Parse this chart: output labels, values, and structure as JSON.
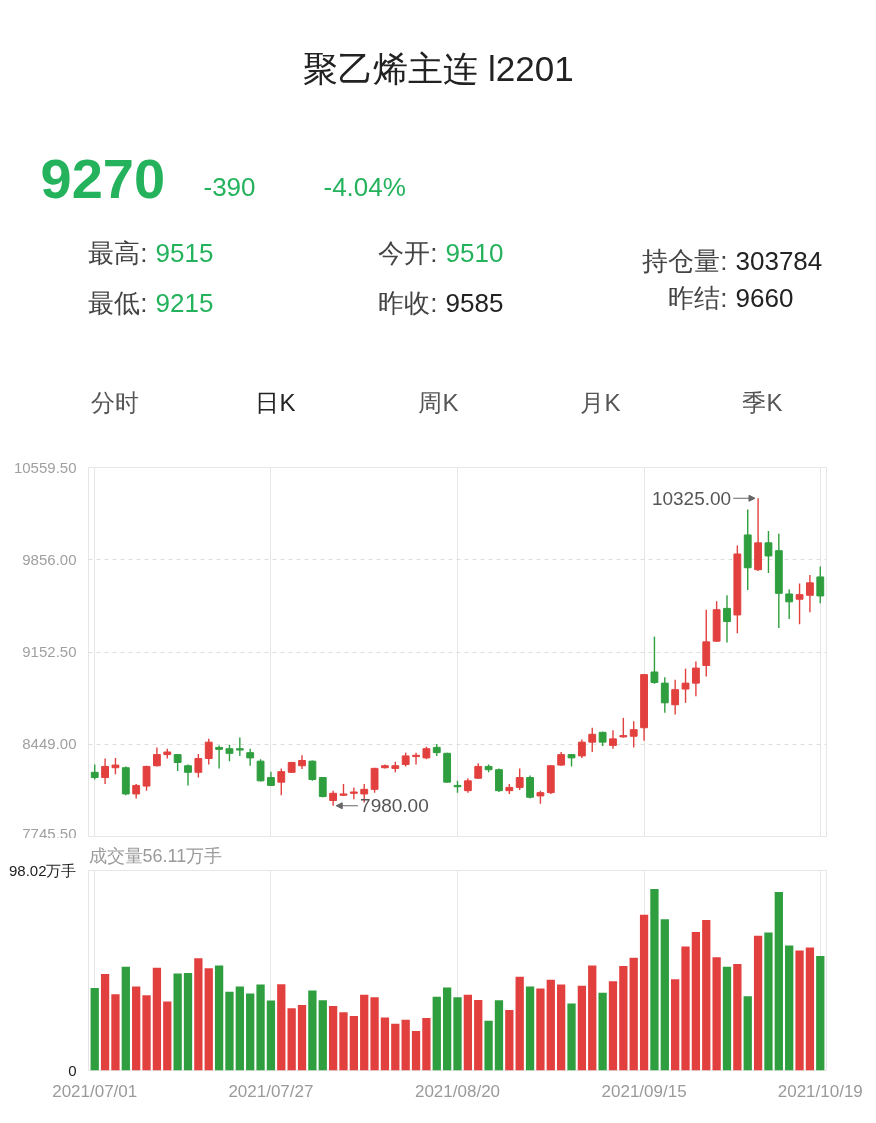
{
  "chart_data": [
    {
      "type": "other",
      "title": "聚乙烯主连 l2201",
      "annotations": [
        "9270",
        "-390",
        "-4.04%",
        "最高: 9515",
        "今开: 9510",
        "持仓量: 303784",
        "最低: 9215",
        "昨收: 9585",
        "昨结: 9660",
        "分时",
        "日K",
        "周K",
        "月K",
        "季K"
      ]
    },
    {
      "type": "candlestick",
      "categories": [
        "2021/07/01",
        null,
        null,
        null,
        null,
        null,
        null,
        null,
        null,
        null,
        null,
        null,
        null,
        null,
        null,
        null,
        null,
        "2021/07/27",
        null,
        null,
        null,
        null,
        null,
        null,
        null,
        null,
        null,
        null,
        null,
        null,
        null,
        null,
        null,
        null,
        null,
        "2021/08/20",
        null,
        null,
        null,
        null,
        null,
        null,
        null,
        null,
        null,
        null,
        null,
        null,
        null,
        null,
        null,
        null,
        null,
        "2021/09/15",
        null,
        null,
        null,
        null,
        null,
        null,
        null,
        null,
        null,
        null,
        null,
        null,
        null,
        null,
        null,
        null,
        "2021/10/19"
      ],
      "ohlc": [
        [
          8235,
          8295,
          8180,
          8195
        ],
        [
          8195,
          8340,
          8145,
          8280
        ],
        [
          8270,
          8345,
          8220,
          8290
        ],
        [
          8270,
          8280,
          8060,
          8070
        ],
        [
          8070,
          8145,
          8035,
          8135
        ],
        [
          8130,
          8285,
          8095,
          8280
        ],
        [
          8285,
          8425,
          8280,
          8370
        ],
        [
          8370,
          8415,
          8340,
          8390
        ],
        [
          8370,
          8375,
          8245,
          8310
        ],
        [
          8285,
          8295,
          8135,
          8235
        ],
        [
          8235,
          8375,
          8195,
          8340
        ],
        [
          8340,
          8490,
          8295,
          8465
        ],
        [
          8425,
          8440,
          8265,
          8410
        ],
        [
          8415,
          8445,
          8320,
          8380
        ],
        [
          8415,
          8500,
          8360,
          8405
        ],
        [
          8385,
          8415,
          8285,
          8345
        ],
        [
          8320,
          8335,
          8165,
          8170
        ],
        [
          8195,
          8240,
          8130,
          8135
        ],
        [
          8160,
          8265,
          8060,
          8240
        ],
        [
          8235,
          8315,
          8230,
          8310
        ],
        [
          8285,
          8365,
          8260,
          8325
        ],
        [
          8320,
          8325,
          8170,
          8180
        ],
        [
          8195,
          8200,
          8045,
          8050
        ],
        [
          8020,
          8095,
          7980,
          8075
        ],
        [
          8060,
          8145,
          8055,
          8070
        ],
        [
          8075,
          8120,
          8030,
          8085
        ],
        [
          8070,
          8145,
          8005,
          8105
        ],
        [
          8105,
          8270,
          8080,
          8265
        ],
        [
          8270,
          8295,
          8265,
          8285
        ],
        [
          8265,
          8315,
          8235,
          8285
        ],
        [
          8295,
          8385,
          8280,
          8360
        ],
        [
          8355,
          8385,
          8295,
          8365
        ],
        [
          8345,
          8430,
          8335,
          8415
        ],
        [
          8425,
          8450,
          8360,
          8385
        ],
        [
          8380,
          8385,
          8155,
          8160
        ],
        [
          8135,
          8170,
          8080,
          8125
        ],
        [
          8095,
          8190,
          8080,
          8170
        ],
        [
          8190,
          8305,
          8185,
          8280
        ],
        [
          8280,
          8295,
          8235,
          8255
        ],
        [
          8255,
          8265,
          8085,
          8095
        ],
        [
          8095,
          8145,
          8070,
          8120
        ],
        [
          8120,
          8265,
          8100,
          8195
        ],
        [
          8195,
          8210,
          8035,
          8045
        ],
        [
          8055,
          8095,
          7995,
          8080
        ],
        [
          8080,
          8290,
          8070,
          8285
        ],
        [
          8290,
          8390,
          8285,
          8370
        ],
        [
          8370,
          8375,
          8280,
          8345
        ],
        [
          8360,
          8485,
          8345,
          8465
        ],
        [
          8465,
          8575,
          8390,
          8525
        ],
        [
          8540,
          8545,
          8435,
          8465
        ],
        [
          8440,
          8555,
          8415,
          8490
        ],
        [
          8505,
          8650,
          8500,
          8515
        ],
        [
          8510,
          8625,
          8425,
          8560
        ],
        [
          8575,
          8985,
          8475,
          8980
        ],
        [
          9000,
          9270,
          8910,
          8920
        ],
        [
          8915,
          8960,
          8690,
          8765
        ],
        [
          8750,
          8940,
          8675,
          8865
        ],
        [
          8870,
          9025,
          8765,
          8915
        ],
        [
          8915,
          9080,
          8815,
          9030
        ],
        [
          9050,
          9475,
          8965,
          9230
        ],
        [
          9235,
          9540,
          9230,
          9475
        ],
        [
          9485,
          9585,
          9225,
          9385
        ],
        [
          9435,
          9965,
          9295,
          9900
        ],
        [
          10045,
          10240,
          9625,
          9795
        ],
        [
          9780,
          10325,
          9770,
          9985
        ],
        [
          9985,
          10075,
          9755,
          9885
        ],
        [
          9925,
          10055,
          9335,
          9600
        ],
        [
          9595,
          9630,
          9405,
          9535
        ],
        [
          9555,
          9675,
          9365,
          9590
        ],
        [
          9585,
          9740,
          9455,
          9680
        ],
        [
          9725,
          9805,
          9525,
          9580
        ]
      ],
      "colors": [
        "#2f9e3f",
        "#e2403e",
        "#e2403e",
        "#2f9e3f",
        "#e2403e",
        "#e2403e",
        "#e2403e",
        "#e2403e",
        "#2f9e3f",
        "#2f9e3f",
        "#e2403e",
        "#e2403e",
        "#2f9e3f",
        "#2f9e3f",
        "#2f9e3f",
        "#2f9e3f",
        "#2f9e3f",
        "#2f9e3f",
        "#e2403e",
        "#e2403e",
        "#e2403e",
        "#2f9e3f",
        "#2f9e3f",
        "#e2403e",
        "#e2403e",
        "#e2403e",
        "#e2403e",
        "#e2403e",
        "#e2403e",
        "#e2403e",
        "#e2403e",
        "#e2403e",
        "#e2403e",
        "#2f9e3f",
        "#2f9e3f",
        "#2f9e3f",
        "#e2403e",
        "#e2403e",
        "#2f9e3f",
        "#2f9e3f",
        "#e2403e",
        "#e2403e",
        "#2f9e3f",
        "#e2403e",
        "#e2403e",
        "#e2403e",
        "#2f9e3f",
        "#e2403e",
        "#e2403e",
        "#2f9e3f",
        "#e2403e",
        "#e2403e",
        "#e2403e",
        "#e2403e",
        "#2f9e3f",
        "#2f9e3f",
        "#e2403e",
        "#e2403e",
        "#e2403e",
        "#e2403e",
        "#e2403e",
        "#2f9e3f",
        "#e2403e",
        "#2f9e3f",
        "#e2403e",
        "#2f9e3f",
        "#2f9e3f",
        "#2f9e3f",
        "#e2403e",
        "#e2403e",
        "#2f9e3f"
      ],
      "ylim": [
        7745.5,
        10559.5
      ],
      "yticks": [
        {
          "value": 7745.5,
          "label": "7745.50"
        },
        {
          "value": 8449,
          "label": "8449.00"
        },
        {
          "value": 9152.5,
          "label": "9152.50"
        },
        {
          "value": 9856,
          "label": "9856.00"
        },
        {
          "value": 10559.5,
          "label": "10559.50"
        }
      ],
      "annotations": [
        "10325.00",
        "7980.00"
      ],
      "grid": true,
      "tick_labels": "y"
    },
    {
      "type": "bar",
      "title": "成交量56.11万手",
      "categories": [
        "2021/07/01",
        null,
        null,
        null,
        null,
        null,
        null,
        null,
        null,
        null,
        null,
        null,
        null,
        null,
        null,
        null,
        null,
        "2021/07/27",
        null,
        null,
        null,
        null,
        null,
        null,
        null,
        null,
        null,
        null,
        null,
        null,
        null,
        null,
        null,
        null,
        null,
        "2021/08/20",
        null,
        null,
        null,
        null,
        null,
        null,
        null,
        null,
        null,
        null,
        null,
        null,
        null,
        null,
        null,
        null,
        null,
        "2021/09/15",
        null,
        null,
        null,
        null,
        null,
        null,
        null,
        null,
        null,
        null,
        null,
        null,
        null,
        null,
        null,
        null,
        "2021/10/19"
      ],
      "values": [
        40.4,
        47.3,
        37.4,
        50.9,
        41.2,
        36.9,
        50.3,
        33.8,
        47.5,
        47.8,
        55.0,
        50.1,
        51.4,
        38.6,
        41.2,
        37.7,
        42.2,
        34.3,
        42.3,
        30.5,
        32.1,
        39.2,
        34.4,
        31.6,
        28.5,
        26.7,
        37.1,
        35.9,
        26.0,
        22.9,
        24.9,
        19.3,
        25.7,
        36.1,
        40.7,
        35.9,
        37.1,
        34.6,
        24.4,
        34.4,
        29.7,
        46.0,
        41.2,
        40.2,
        44.5,
        42.2,
        32.8,
        41.5,
        51.4,
        38.1,
        43.7,
        51.2,
        55.2,
        76.3,
        89.0,
        74.1,
        44.7,
        60.8,
        67.9,
        73.7,
        55.5,
        50.9,
        52.2,
        36.4,
        66.1,
        67.6,
        87.5,
        61.3,
        58.8,
        60.3,
        56.1
      ],
      "colors": [
        "#2f9e3f",
        "#e2403e",
        "#e2403e",
        "#2f9e3f",
        "#e2403e",
        "#e2403e",
        "#e2403e",
        "#e2403e",
        "#2f9e3f",
        "#2f9e3f",
        "#e2403e",
        "#e2403e",
        "#2f9e3f",
        "#2f9e3f",
        "#2f9e3f",
        "#2f9e3f",
        "#2f9e3f",
        "#2f9e3f",
        "#e2403e",
        "#e2403e",
        "#e2403e",
        "#2f9e3f",
        "#2f9e3f",
        "#e2403e",
        "#e2403e",
        "#e2403e",
        "#e2403e",
        "#e2403e",
        "#e2403e",
        "#e2403e",
        "#e2403e",
        "#e2403e",
        "#e2403e",
        "#2f9e3f",
        "#2f9e3f",
        "#2f9e3f",
        "#e2403e",
        "#e2403e",
        "#2f9e3f",
        "#2f9e3f",
        "#e2403e",
        "#e2403e",
        "#2f9e3f",
        "#e2403e",
        "#e2403e",
        "#e2403e",
        "#2f9e3f",
        "#e2403e",
        "#e2403e",
        "#2f9e3f",
        "#e2403e",
        "#e2403e",
        "#e2403e",
        "#e2403e",
        "#2f9e3f",
        "#2f9e3f",
        "#e2403e",
        "#e2403e",
        "#e2403e",
        "#e2403e",
        "#e2403e",
        "#2f9e3f",
        "#e2403e",
        "#2f9e3f",
        "#e2403e",
        "#2f9e3f",
        "#2f9e3f",
        "#2f9e3f",
        "#e2403e",
        "#e2403e",
        "#2f9e3f"
      ],
      "ylim": [
        0,
        98.02
      ],
      "yticks": [
        0,
        {
          "value": 98.02,
          "label": "98.02万手"
        }
      ],
      "grid": "x"
    }
  ]
}
